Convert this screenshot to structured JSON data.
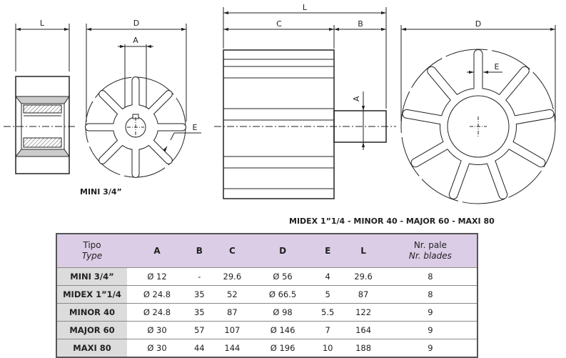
{
  "drawing": {
    "labels": {
      "L": "L",
      "D": "D",
      "A": "A",
      "E": "E",
      "C": "C",
      "B": "B"
    },
    "caption_small": "MINI 3/4”",
    "caption_large": "MIDEX 1”1/4 - MINOR 40 - MAJOR 60 - MAXI 80",
    "small_impeller_blades": 8,
    "large_impeller_blades": 9
  },
  "table": {
    "header": {
      "type_it": "Tipo",
      "type_en": "Type",
      "cols": [
        "A",
        "B",
        "C",
        "D",
        "E",
        "L"
      ],
      "blades_it": "Nr. pale",
      "blades_en": "Nr. blades"
    },
    "header_color": "#dccde6",
    "rows": [
      {
        "model": "MINI 3/4”",
        "A": "Ø 12",
        "B": "-",
        "C": "29.6",
        "D": "Ø 56",
        "E": "4",
        "L": "29.6",
        "blades": "8"
      },
      {
        "model": "MIDEX 1”1/4",
        "A": "Ø 24.8",
        "B": "35",
        "C": "52",
        "D": "Ø 66.5",
        "E": "5",
        "L": "87",
        "blades": "8"
      },
      {
        "model": "MINOR 40",
        "A": "Ø 24.8",
        "B": "35",
        "C": "87",
        "D": "Ø 98",
        "E": "5.5",
        "L": "122",
        "blades": "9"
      },
      {
        "model": "MAJOR 60",
        "A": "Ø 30",
        "B": "57",
        "C": "107",
        "D": "Ø 146",
        "E": "7",
        "L": "164",
        "blades": "9"
      },
      {
        "model": "MAXI 80",
        "A": "Ø 30",
        "B": "44",
        "C": "144",
        "D": "Ø 196",
        "E": "10",
        "L": "188",
        "blades": "9"
      }
    ]
  }
}
